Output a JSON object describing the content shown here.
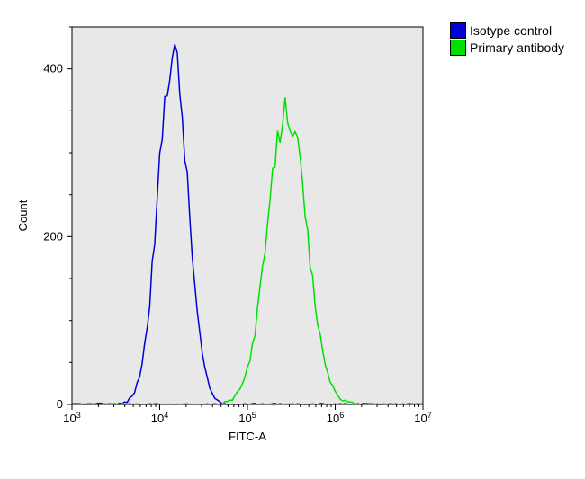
{
  "chart": {
    "type": "histogram",
    "background_color": "#ffffff",
    "plot_background": "#e8e8e8",
    "border_color": "#000000",
    "x_axis": {
      "label": "FITC-A",
      "scale": "log",
      "min_exp": 3,
      "max_exp": 7,
      "tick_exps": [
        3,
        4,
        5,
        6,
        7
      ],
      "label_fontsize": 13
    },
    "y_axis": {
      "label": "Count",
      "scale": "linear",
      "min": 0,
      "max": 450,
      "ticks": [
        0,
        200,
        400
      ],
      "label_fontsize": 13
    },
    "series": [
      {
        "name": "Isotype control",
        "color": "#0000d8",
        "line_width": 1.5,
        "peak_log_x": 4.15,
        "peak_y": 418,
        "sigma_log": 0.17
      },
      {
        "name": "Primary antibody",
        "color": "#00e000",
        "line_width": 1.5,
        "peak_log_x": 5.45,
        "peak_y": 350,
        "sigma_log": 0.22
      }
    ],
    "legend_swatch_border": "#000000"
  }
}
